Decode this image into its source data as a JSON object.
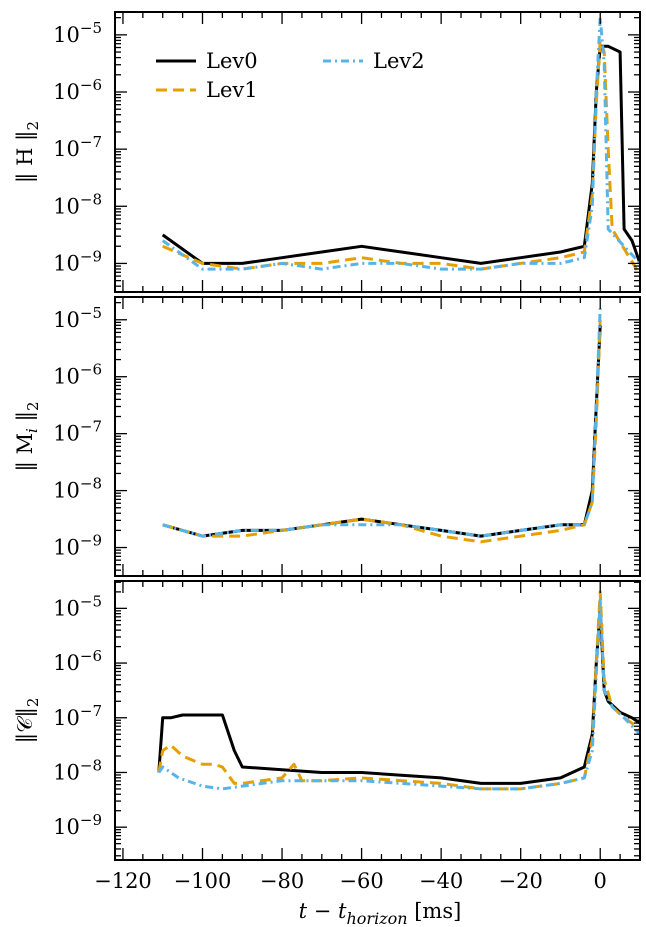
{
  "chart_data": {
    "type": "line",
    "xlabel": {
      "main": "t − t",
      "sub": "horizon",
      "unit": " [ms]"
    },
    "xlim": [
      -122,
      10
    ],
    "xticks": [
      -120,
      -100,
      -80,
      -60,
      -40,
      -20,
      0
    ],
    "xtick_labels": [
      "−120",
      "−100",
      "−80",
      "−60",
      "−40",
      "−20",
      "0"
    ],
    "legend": {
      "placement": "top-left",
      "entries": [
        {
          "name": "Lev0",
          "color": "#000000",
          "dash": "solid"
        },
        {
          "name": "Lev1",
          "color": "#E69F00",
          "dash": "dashed"
        },
        {
          "name": "Lev2",
          "color": "#56B4E9",
          "dash": "dashdot"
        }
      ]
    },
    "panels": [
      {
        "ylabel": {
          "pre": "‖ H ‖",
          "sub": "2"
        },
        "ylog": true,
        "ylim_exp": [
          -9.5,
          -4.6
        ],
        "yticks_exp": [
          -9,
          -8,
          -7,
          -6,
          -5
        ],
        "series": [
          {
            "name": "Lev0",
            "color": "#000000",
            "dash": "solid",
            "points": [
              [
                -110,
                -8.5
              ],
              [
                -100,
                -9.0
              ],
              [
                -90,
                -9.0
              ],
              [
                -80,
                -8.9
              ],
              [
                -70,
                -8.8
              ],
              [
                -60,
                -8.7
              ],
              [
                -50,
                -8.8
              ],
              [
                -40,
                -8.9
              ],
              [
                -30,
                -9.0
              ],
              [
                -20,
                -8.9
              ],
              [
                -10,
                -8.8
              ],
              [
                -4,
                -8.7
              ],
              [
                -2,
                -7.6
              ],
              [
                -1,
                -6.0
              ],
              [
                0,
                -5.2
              ],
              [
                2,
                -5.2
              ],
              [
                5,
                -5.3
              ],
              [
                6,
                -8.4
              ],
              [
                8,
                -8.6
              ],
              [
                10,
                -9.0
              ]
            ]
          },
          {
            "name": "Lev1",
            "color": "#E69F00",
            "dash": "dashed",
            "points": [
              [
                -110,
                -8.7
              ],
              [
                -100,
                -9.0
              ],
              [
                -90,
                -9.1
              ],
              [
                -80,
                -9.0
              ],
              [
                -70,
                -9.0
              ],
              [
                -60,
                -8.9
              ],
              [
                -50,
                -9.0
              ],
              [
                -40,
                -9.0
              ],
              [
                -30,
                -9.1
              ],
              [
                -20,
                -9.0
              ],
              [
                -10,
                -8.9
              ],
              [
                -4,
                -8.8
              ],
              [
                -2,
                -7.8
              ],
              [
                -1,
                -6.2
              ],
              [
                0,
                -5.1
              ],
              [
                1,
                -5.3
              ],
              [
                2,
                -7.0
              ],
              [
                3,
                -8.4
              ],
              [
                10,
                -9.2
              ]
            ]
          },
          {
            "name": "Lev2",
            "color": "#56B4E9",
            "dash": "dashdot",
            "points": [
              [
                -110,
                -8.6
              ],
              [
                -100,
                -9.1
              ],
              [
                -90,
                -9.1
              ],
              [
                -80,
                -9.0
              ],
              [
                -70,
                -9.1
              ],
              [
                -60,
                -9.0
              ],
              [
                -50,
                -9.0
              ],
              [
                -40,
                -9.1
              ],
              [
                -30,
                -9.1
              ],
              [
                -20,
                -9.0
              ],
              [
                -10,
                -9.0
              ],
              [
                -4,
                -8.9
              ],
              [
                -2,
                -8.0
              ],
              [
                -1,
                -6.0
              ],
              [
                0,
                -4.7
              ],
              [
                1,
                -5.5
              ],
              [
                2,
                -8.4
              ],
              [
                10,
                -9.0
              ]
            ]
          }
        ]
      },
      {
        "ylabel": {
          "pre": "‖ M",
          "sub_i": "i",
          "post": " ‖",
          "sub": "2"
        },
        "ylog": true,
        "ylim_exp": [
          -9.5,
          -4.6
        ],
        "yticks_exp": [
          -9,
          -8,
          -7,
          -6,
          -5
        ],
        "series": [
          {
            "name": "Lev0",
            "color": "#000000",
            "dash": "solid",
            "points": [
              [
                -110,
                -8.6
              ],
              [
                -100,
                -8.8
              ],
              [
                -90,
                -8.7
              ],
              [
                -80,
                -8.7
              ],
              [
                -70,
                -8.6
              ],
              [
                -60,
                -8.5
              ],
              [
                -50,
                -8.6
              ],
              [
                -40,
                -8.7
              ],
              [
                -30,
                -8.8
              ],
              [
                -20,
                -8.7
              ],
              [
                -10,
                -8.6
              ],
              [
                -4,
                -8.6
              ],
              [
                -2,
                -8.0
              ],
              [
                -1,
                -6.5
              ],
              [
                0,
                -5.1
              ]
            ]
          },
          {
            "name": "Lev1",
            "color": "#E69F00",
            "dash": "dashed",
            "points": [
              [
                -110,
                -8.6
              ],
              [
                -100,
                -8.8
              ],
              [
                -90,
                -8.8
              ],
              [
                -80,
                -8.7
              ],
              [
                -70,
                -8.6
              ],
              [
                -60,
                -8.5
              ],
              [
                -50,
                -8.6
              ],
              [
                -40,
                -8.8
              ],
              [
                -30,
                -8.9
              ],
              [
                -20,
                -8.8
              ],
              [
                -10,
                -8.7
              ],
              [
                -4,
                -8.6
              ],
              [
                -2,
                -8.2
              ],
              [
                -1,
                -6.8
              ],
              [
                0,
                -5.0
              ]
            ]
          },
          {
            "name": "Lev2",
            "color": "#56B4E9",
            "dash": "dashdot",
            "points": [
              [
                -110,
                -8.6
              ],
              [
                -100,
                -8.8
              ],
              [
                -90,
                -8.7
              ],
              [
                -80,
                -8.7
              ],
              [
                -70,
                -8.6
              ],
              [
                -60,
                -8.6
              ],
              [
                -50,
                -8.6
              ],
              [
                -40,
                -8.7
              ],
              [
                -30,
                -8.8
              ],
              [
                -20,
                -8.7
              ],
              [
                -10,
                -8.6
              ],
              [
                -4,
                -8.6
              ],
              [
                -2,
                -8.2
              ],
              [
                -1,
                -6.5
              ],
              [
                0,
                -4.8
              ]
            ]
          }
        ]
      },
      {
        "ylabel": {
          "pre": "‖𝒞‖",
          "sub": "2"
        },
        "ylog": true,
        "ylim_exp": [
          -9.6,
          -4.5
        ],
        "yticks_exp": [
          -9,
          -8,
          -7,
          -6,
          -5
        ],
        "series": [
          {
            "name": "Lev0",
            "color": "#000000",
            "dash": "solid",
            "points": [
              [
                -111,
                -8.0
              ],
              [
                -110,
                -7.0
              ],
              [
                -108,
                -7.0
              ],
              [
                -105,
                -6.95
              ],
              [
                -95,
                -6.95
              ],
              [
                -92,
                -7.6
              ],
              [
                -90,
                -7.9
              ],
              [
                -80,
                -7.95
              ],
              [
                -70,
                -8.0
              ],
              [
                -60,
                -8.0
              ],
              [
                -50,
                -8.05
              ],
              [
                -40,
                -8.1
              ],
              [
                -30,
                -8.2
              ],
              [
                -20,
                -8.2
              ],
              [
                -10,
                -8.1
              ],
              [
                -4,
                -7.9
              ],
              [
                -2,
                -7.3
              ],
              [
                -1,
                -6.0
              ],
              [
                0,
                -5.0
              ],
              [
                1,
                -6.5
              ],
              [
                2,
                -6.7
              ],
              [
                5,
                -6.9
              ],
              [
                8,
                -7.0
              ],
              [
                10,
                -7.1
              ]
            ]
          },
          {
            "name": "Lev1",
            "color": "#E69F00",
            "dash": "dashed",
            "points": [
              [
                -111,
                -8.0
              ],
              [
                -110,
                -7.6
              ],
              [
                -108,
                -7.5
              ],
              [
                -105,
                -7.7
              ],
              [
                -100,
                -7.85
              ],
              [
                -97,
                -7.85
              ],
              [
                -95,
                -7.9
              ],
              [
                -92,
                -8.2
              ],
              [
                -90,
                -8.2
              ],
              [
                -80,
                -8.1
              ],
              [
                -77,
                -7.85
              ],
              [
                -75,
                -8.15
              ],
              [
                -70,
                -8.15
              ],
              [
                -60,
                -8.1
              ],
              [
                -50,
                -8.15
              ],
              [
                -40,
                -8.2
              ],
              [
                -30,
                -8.3
              ],
              [
                -20,
                -8.3
              ],
              [
                -10,
                -8.2
              ],
              [
                -4,
                -8.1
              ],
              [
                -2,
                -7.4
              ],
              [
                -1,
                -6.0
              ],
              [
                0,
                -4.7
              ],
              [
                1,
                -6.3
              ],
              [
                3,
                -6.8
              ],
              [
                6,
                -7.0
              ],
              [
                10,
                -7.2
              ]
            ]
          },
          {
            "name": "Lev2",
            "color": "#56B4E9",
            "dash": "dashdot",
            "points": [
              [
                -111,
                -8.0
              ],
              [
                -110,
                -7.9
              ],
              [
                -106,
                -8.1
              ],
              [
                -100,
                -8.25
              ],
              [
                -95,
                -8.3
              ],
              [
                -90,
                -8.25
              ],
              [
                -80,
                -8.15
              ],
              [
                -70,
                -8.15
              ],
              [
                -60,
                -8.15
              ],
              [
                -50,
                -8.2
              ],
              [
                -40,
                -8.25
              ],
              [
                -30,
                -8.3
              ],
              [
                -20,
                -8.3
              ],
              [
                -10,
                -8.2
              ],
              [
                -4,
                -8.1
              ],
              [
                -2,
                -7.6
              ],
              [
                -1,
                -6.2
              ],
              [
                0,
                -4.85
              ],
              [
                1,
                -6.5
              ],
              [
                3,
                -6.8
              ],
              [
                6,
                -7.0
              ],
              [
                10,
                -7.3
              ]
            ]
          }
        ]
      }
    ]
  }
}
